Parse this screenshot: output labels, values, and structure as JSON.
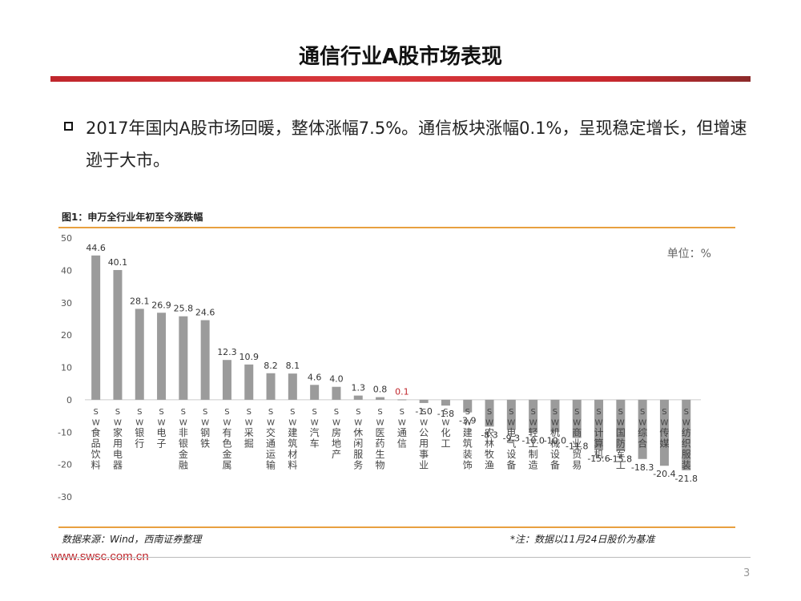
{
  "slide": {
    "title": "通信行业A股市场表现",
    "bullet": "2017年国内A股市场回暖，整体涨幅7.5%。通信板块涨幅0.1%，呈现稳定增长，但增速逊于大市。",
    "source_left": "数据来源：Wind，西南证券整理",
    "source_right": "*注：数据以11月24日股价为基准",
    "website": "www.swsc.com.cn",
    "page_number": "3"
  },
  "chart_data": {
    "type": "bar",
    "title": "图1：申万全行业年初至今涨跌幅",
    "unit_label": "单位：%",
    "ylim": [
      -30,
      50
    ],
    "yticks": [
      50,
      40,
      30,
      20,
      10,
      0,
      -10,
      -20,
      -30
    ],
    "categories": [
      "SW食品饮料",
      "SW家用电器",
      "SW银行",
      "SW电子",
      "SW非银金融",
      "SW钢铁",
      "SW有色金属",
      "SW采掘",
      "SW交通运输",
      "SW建筑材料",
      "SW汽车",
      "SW房地产",
      "SW休闲服务",
      "SW医药生物",
      "SW通信",
      "SW公用事业",
      "SW化工",
      "SW建筑装饰",
      "SW农林牧渔",
      "SW电气设备",
      "SW轻工制造",
      "SW机械设备",
      "SW商业贸易",
      "SW计算机",
      "SW国防军工",
      "SW综合",
      "SW传媒",
      "SW纺织服装"
    ],
    "values": [
      44.6,
      40.1,
      28.1,
      26.9,
      25.8,
      24.6,
      12.3,
      10.9,
      8.2,
      8.1,
      4.6,
      4.0,
      1.3,
      0.8,
      0.1,
      -1.0,
      -1.8,
      -3.9,
      -8.3,
      -9.3,
      -10.0,
      -10.0,
      -11.8,
      -15.6,
      -15.8,
      -18.3,
      -20.4,
      -21.8
    ],
    "highlight_index": 14,
    "colors": {
      "bar": "#9b9b9b",
      "highlight_label": "#c0262c",
      "label": "#333333",
      "axis": "#cccccc"
    }
  }
}
